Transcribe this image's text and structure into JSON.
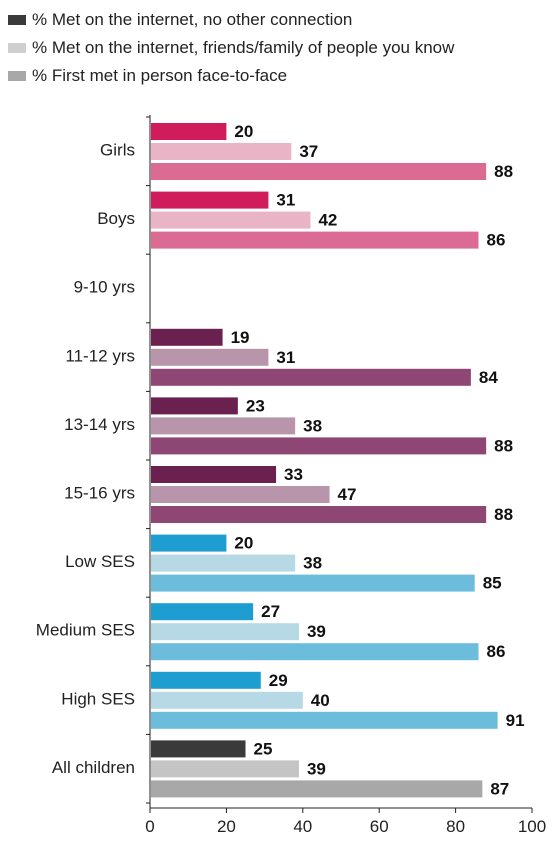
{
  "chart_data": {
    "type": "bar",
    "orientation": "horizontal",
    "legend_placement": "top-left",
    "categories": [
      "Girls",
      "Boys",
      "9-10 yrs",
      "11-12 yrs",
      "13-14 yrs",
      "15-16 yrs",
      "Low  SES",
      "Medium SES",
      "High SES",
      "All children"
    ],
    "series": [
      {
        "name": "% Met on the internet, no other connection",
        "values": [
          20,
          31,
          null,
          19,
          23,
          33,
          20,
          27,
          29,
          25
        ]
      },
      {
        "name": "% Met on the internet, friends/family of people you know",
        "values": [
          37,
          42,
          null,
          31,
          38,
          47,
          38,
          39,
          40,
          39
        ]
      },
      {
        "name": "% First met in person face-to-face",
        "values": [
          88,
          86,
          null,
          84,
          88,
          88,
          85,
          86,
          91,
          87
        ]
      }
    ],
    "group_colors": [
      [
        "#d01c5b",
        "#e8b4c6",
        "#dc6b94"
      ],
      [
        "#d01c5b",
        "#e8b4c6",
        "#dc6b94"
      ],
      [
        "#6b2150",
        "#b895ab",
        "#8e4675"
      ],
      [
        "#6b2150",
        "#b895ab",
        "#8e4675"
      ],
      [
        "#6b2150",
        "#b895ab",
        "#8e4675"
      ],
      [
        "#6b2150",
        "#b895ab",
        "#8e4675"
      ],
      [
        "#1e9dd0",
        "#b7d9e6",
        "#6cbddc"
      ],
      [
        "#1e9dd0",
        "#b7d9e6",
        "#6cbddc"
      ],
      [
        "#1e9dd0",
        "#b7d9e6",
        "#6cbddc"
      ],
      [
        "#3a3a3a",
        "#c4c4c4",
        "#a8a8a8"
      ]
    ],
    "legend_colors": [
      "#3a3a3a",
      "#cfcfcf",
      "#a8a8a8"
    ],
    "xlim": [
      0,
      100
    ],
    "xticks": [
      0,
      20,
      40,
      60,
      80,
      100
    ],
    "grid": false
  }
}
